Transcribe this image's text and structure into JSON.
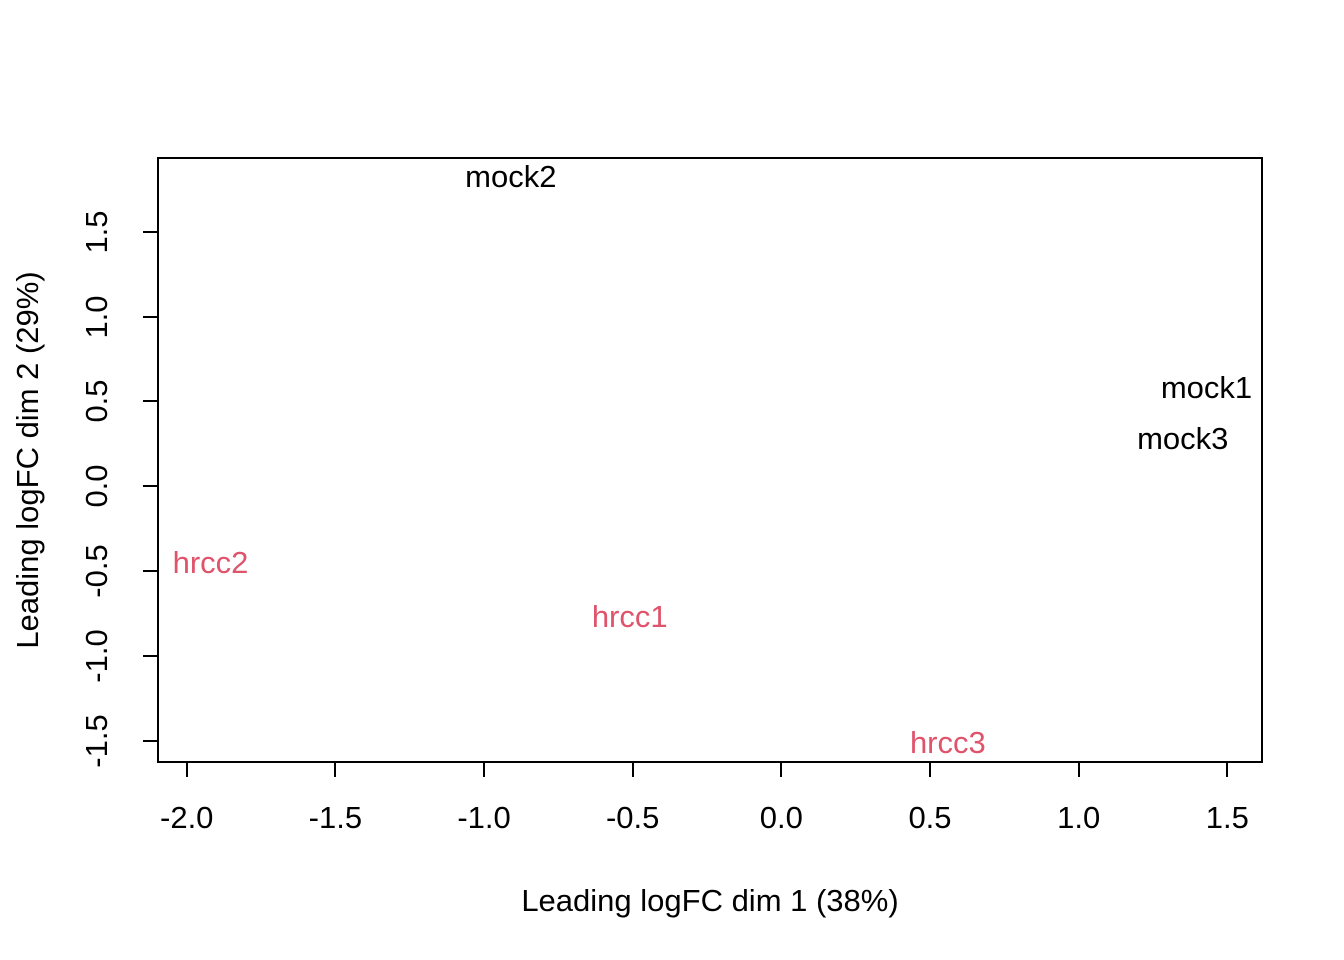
{
  "colors": {
    "background": "#ffffff",
    "axis": "#000000",
    "mock_series": "#000000",
    "hrcc_series": "#DF536B"
  },
  "chart_data": {
    "type": "scatter",
    "title": "",
    "xlabel": "Leading logFC dim 1 (38%)",
    "ylabel": "Leading logFC dim 2 (29%)",
    "xlim": [
      -2.1,
      1.62
    ],
    "ylim": [
      -1.63,
      1.94
    ],
    "x_ticks": [
      -2.0,
      -1.5,
      -1.0,
      -0.5,
      0.0,
      0.5,
      1.0,
      1.5
    ],
    "x_tick_labels": [
      "-2.0",
      "-1.5",
      "-1.0",
      "-0.5",
      "0.0",
      "0.5",
      "1.0",
      "1.5"
    ],
    "y_ticks": [
      -1.5,
      -1.0,
      -0.5,
      0.0,
      0.5,
      1.0,
      1.5
    ],
    "y_tick_labels": [
      "-1.5",
      "-1.0",
      "-0.5",
      "0.0",
      "0.5",
      "1.0",
      "1.5"
    ],
    "grid": false,
    "legend_position": "none",
    "point_style": "text-labels",
    "series": [
      {
        "name": "mock",
        "color": "#000000",
        "points": [
          {
            "label": "mock2",
            "x": -0.91,
            "y": 1.82
          },
          {
            "label": "mock1",
            "x": 1.43,
            "y": 0.58
          },
          {
            "label": "mock3",
            "x": 1.35,
            "y": 0.28
          }
        ]
      },
      {
        "name": "hrcc",
        "color": "#DF536B",
        "points": [
          {
            "label": "hrcc2",
            "x": -1.92,
            "y": -0.45
          },
          {
            "label": "hrcc1",
            "x": -0.51,
            "y": -0.77
          },
          {
            "label": "hrcc3",
            "x": 0.56,
            "y": -1.51
          }
        ]
      }
    ]
  }
}
